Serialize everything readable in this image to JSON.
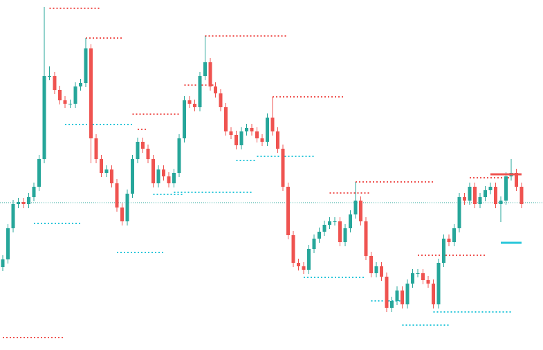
{
  "chart_data": {
    "type": "candlestick",
    "ylim": [
      0,
      506
    ],
    "up_color": "#26a69a",
    "down_color": "#ef5350",
    "open": [
      120,
      131,
      176,
      211,
      214,
      211,
      221,
      236,
      276,
      396,
      396,
      376,
      361,
      356,
      356,
      381,
      386,
      436,
      306,
      276,
      256,
      261,
      241,
      206,
      186,
      226,
      276,
      301,
      291,
      276,
      241,
      261,
      251,
      241,
      256,
      306,
      361,
      356,
      351,
      396,
      416,
      381,
      371,
      351,
      316,
      311,
      296,
      316,
      321,
      316,
      306,
      301,
      336,
      316,
      291,
      236,
      166,
      126,
      121,
      116,
      146,
      161,
      171,
      181,
      186,
      186,
      156,
      176,
      196,
      216,
      186,
      136,
      111,
      121,
      106,
      61,
      71,
      86,
      66,
      96,
      111,
      111,
      101,
      96,
      66,
      126,
      161,
      156,
      176,
      221,
      216,
      236,
      211,
      221,
      231,
      236,
      211,
      216,
      251,
      256,
      236
    ],
    "high": [
      137,
      182,
      217,
      220,
      220,
      227,
      242,
      282,
      496,
      410,
      402,
      382,
      367,
      362,
      387,
      392,
      451,
      442,
      312,
      282,
      267,
      267,
      247,
      212,
      232,
      282,
      307,
      307,
      297,
      282,
      267,
      267,
      257,
      262,
      312,
      367,
      367,
      362,
      402,
      454,
      422,
      387,
      377,
      357,
      322,
      317,
      322,
      327,
      327,
      322,
      312,
      342,
      366,
      322,
      297,
      242,
      172,
      132,
      127,
      152,
      167,
      177,
      187,
      192,
      192,
      192,
      182,
      202,
      243,
      222,
      192,
      142,
      127,
      127,
      112,
      77,
      92,
      92,
      102,
      117,
      117,
      117,
      107,
      102,
      132,
      167,
      167,
      182,
      227,
      227,
      242,
      242,
      227,
      237,
      242,
      242,
      222,
      257,
      276,
      262,
      242
    ],
    "low": [
      114,
      125,
      170,
      205,
      205,
      205,
      215,
      230,
      270,
      390,
      370,
      355,
      350,
      350,
      350,
      375,
      380,
      270,
      270,
      250,
      250,
      235,
      200,
      180,
      180,
      220,
      270,
      285,
      270,
      235,
      235,
      245,
      235,
      235,
      250,
      300,
      350,
      345,
      345,
      390,
      375,
      365,
      345,
      310,
      305,
      290,
      290,
      310,
      310,
      300,
      295,
      295,
      310,
      285,
      230,
      160,
      120,
      115,
      110,
      110,
      140,
      155,
      165,
      175,
      180,
      150,
      150,
      170,
      190,
      180,
      130,
      105,
      105,
      100,
      55,
      55,
      65,
      60,
      60,
      90,
      105,
      95,
      90,
      60,
      60,
      120,
      150,
      150,
      170,
      210,
      210,
      205,
      205,
      215,
      225,
      205,
      185,
      210,
      245,
      230,
      205
    ],
    "close": [
      131,
      176,
      211,
      214,
      211,
      221,
      236,
      276,
      396,
      396,
      376,
      361,
      356,
      356,
      381,
      386,
      436,
      306,
      276,
      256,
      261,
      241,
      206,
      186,
      226,
      276,
      301,
      291,
      276,
      241,
      261,
      251,
      241,
      256,
      306,
      361,
      356,
      351,
      396,
      416,
      381,
      371,
      351,
      316,
      311,
      296,
      316,
      321,
      316,
      306,
      301,
      336,
      316,
      291,
      236,
      166,
      126,
      121,
      116,
      146,
      161,
      171,
      181,
      186,
      186,
      156,
      176,
      196,
      216,
      186,
      136,
      111,
      121,
      106,
      61,
      71,
      86,
      66,
      96,
      111,
      111,
      101,
      96,
      66,
      126,
      161,
      156,
      176,
      221,
      216,
      236,
      211,
      221,
      231,
      236,
      211,
      216,
      251,
      256,
      236,
      211
    ],
    "resistance_levels": [
      {
        "value": 494,
        "from": 9,
        "to": 19
      },
      {
        "value": 451,
        "from": 16,
        "to": 23
      },
      {
        "value": 454,
        "from": 39,
        "to": 55
      },
      {
        "value": 366,
        "from": 52,
        "to": 66
      },
      {
        "value": 341,
        "from": 25,
        "to": 34
      },
      {
        "value": 319,
        "from": 26,
        "to": 28
      },
      {
        "value": 383,
        "from": 35,
        "to": 41
      },
      {
        "value": 243,
        "from": 68,
        "to": 83
      },
      {
        "value": 227,
        "from": 63,
        "to": 71
      },
      {
        "value": 137,
        "from": 80,
        "to": 93
      },
      {
        "value": 249,
        "from": 90,
        "to": 98
      },
      {
        "value": 18,
        "from": 0,
        "to": 12
      }
    ],
    "support_levels": [
      {
        "value": 326,
        "from": 12,
        "to": 25
      },
      {
        "value": 183,
        "from": 6,
        "to": 15
      },
      {
        "value": 141,
        "from": 22,
        "to": 31
      },
      {
        "value": 228,
        "from": 33,
        "to": 48
      },
      {
        "value": 225,
        "from": 29,
        "to": 35
      },
      {
        "value": 280,
        "from": 49,
        "to": 60
      },
      {
        "value": 274,
        "from": 45,
        "to": 49
      },
      {
        "value": 105,
        "from": 58,
        "to": 70
      },
      {
        "value": 71,
        "from": 71,
        "to": 77
      },
      {
        "value": 36,
        "from": 77,
        "to": 86
      },
      {
        "value": 55,
        "from": 83,
        "to": 98
      }
    ],
    "resistance_color": "#ef5350",
    "support_color": "#26c6da",
    "active_resistance": {
      "value": 254,
      "from": 94,
      "to": 100
    },
    "active_support": {
      "value": 155,
      "from": 96,
      "to": 100
    },
    "last_price_line": 213
  }
}
